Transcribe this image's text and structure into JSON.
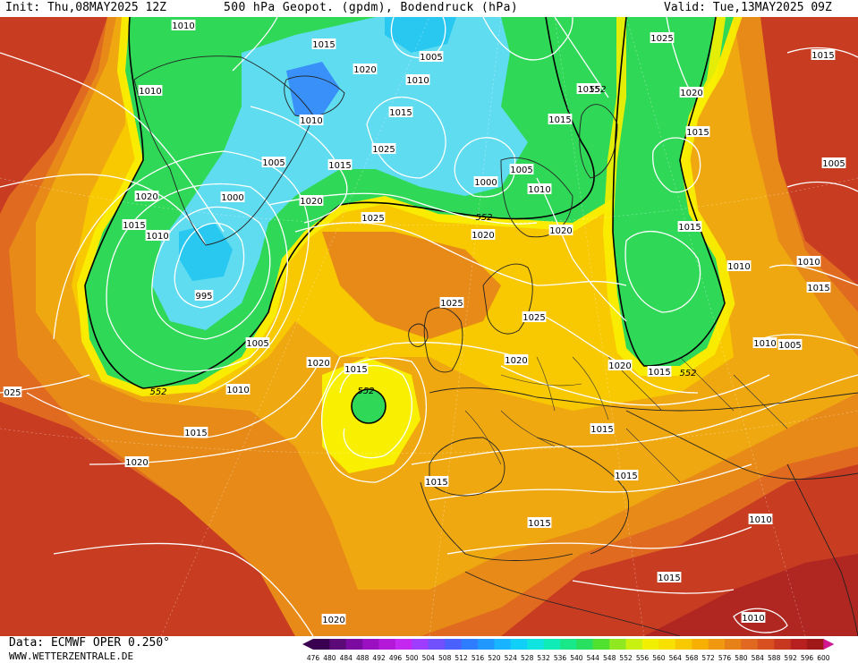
{
  "header": {
    "init": "Init: Thu,08MAY2025 12Z",
    "title": "500 hPa Geopot. (gpdm), Bodendruck (hPa)",
    "valid": "Valid: Tue,13MAY2025 09Z"
  },
  "footer": {
    "data_source": "Data: ECMWF OPER 0.250°",
    "website": "WWW.WETTERZENTRALE.DE"
  },
  "legend": {
    "values": [
      "476",
      "480",
      "484",
      "488",
      "492",
      "496",
      "500",
      "504",
      "508",
      "512",
      "516",
      "520",
      "524",
      "528",
      "532",
      "536",
      "540",
      "544",
      "548",
      "552",
      "556",
      "560",
      "564",
      "568",
      "572",
      "576",
      "580",
      "584",
      "588",
      "592",
      "596",
      "600"
    ],
    "colors": [
      "#3a0050",
      "#5b0a78",
      "#7a0aa0",
      "#9a10c0",
      "#b418d8",
      "#c428f0",
      "#9e3cff",
      "#7050ff",
      "#4a60ff",
      "#2e7cff",
      "#2098ff",
      "#18b4ff",
      "#10d0f8",
      "#10e4e0",
      "#10ecb8",
      "#18e888",
      "#28e060",
      "#50e030",
      "#90e820",
      "#c8f010",
      "#f0f000",
      "#f8e000",
      "#f8c800",
      "#f8b000",
      "#f09810",
      "#e88018",
      "#e06820",
      "#d85020",
      "#c83820",
      "#b82020",
      "#a01818",
      "#d01890"
    ]
  },
  "map": {
    "field_colors": {
      "green": "#30d858",
      "green_light": "#60e040",
      "cyan": "#28c8f0",
      "cyan_light": "#60dcf0",
      "blue": "#3890f8",
      "yellow": "#f8f000",
      "yellow_orange": "#f8c800",
      "orange": "#f0a810",
      "orange_deep": "#e88a18",
      "red_orange": "#e06a20",
      "red": "#c83c22",
      "dark_red": "#b02620"
    },
    "contour_552_labels": [
      "552",
      "552",
      "552",
      "552",
      "552"
    ],
    "isobar_labels": [
      {
        "text": "1010"
      },
      {
        "text": "1015"
      },
      {
        "text": "1005"
      },
      {
        "text": "1025"
      },
      {
        "text": "1015"
      },
      {
        "text": "1010"
      },
      {
        "text": "1020"
      },
      {
        "text": "1010"
      },
      {
        "text": "1015"
      },
      {
        "text": "1020"
      },
      {
        "text": "1010"
      },
      {
        "text": "1015"
      },
      {
        "text": "1015"
      },
      {
        "text": "1005"
      },
      {
        "text": "1015"
      },
      {
        "text": "1005"
      },
      {
        "text": "1025"
      },
      {
        "text": "1015"
      },
      {
        "text": "1020"
      },
      {
        "text": "1000"
      },
      {
        "text": "1000"
      },
      {
        "text": "1005"
      },
      {
        "text": "1010"
      },
      {
        "text": "1020"
      },
      {
        "text": "1015"
      },
      {
        "text": "1025"
      },
      {
        "text": "1020"
      },
      {
        "text": "1010"
      },
      {
        "text": "995"
      },
      {
        "text": "1015"
      },
      {
        "text": "1020"
      },
      {
        "text": "1015"
      },
      {
        "text": "1025"
      },
      {
        "text": "1025"
      },
      {
        "text": "1010"
      },
      {
        "text": "1010"
      },
      {
        "text": "1020"
      },
      {
        "text": "1015"
      },
      {
        "text": "1005"
      },
      {
        "text": "1010"
      },
      {
        "text": "1020"
      },
      {
        "text": "1020"
      },
      {
        "text": "1015"
      },
      {
        "text": "1015"
      },
      {
        "text": "1010"
      },
      {
        "text": "1015"
      },
      {
        "text": "1015"
      },
      {
        "text": "1015"
      },
      {
        "text": "1015"
      },
      {
        "text": "1020"
      },
      {
        "text": "1015"
      },
      {
        "text": "1010"
      },
      {
        "text": "1020"
      },
      {
        "text": "1010"
      },
      {
        "text": "1005"
      },
      {
        "text": "025"
      }
    ]
  }
}
